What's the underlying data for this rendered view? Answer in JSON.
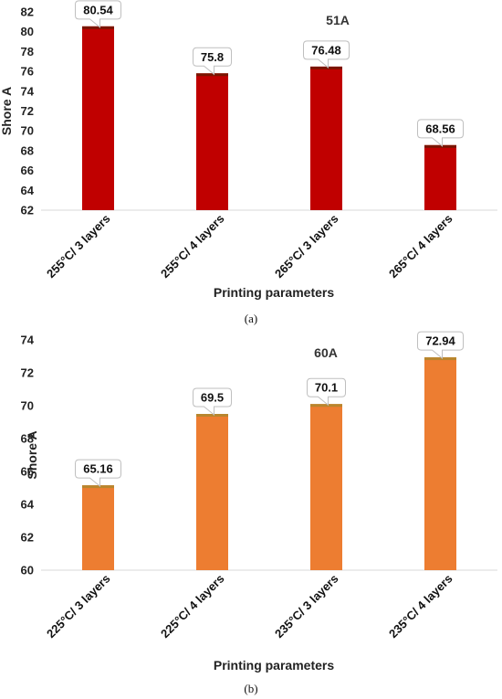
{
  "chart_data": [
    {
      "type": "bar",
      "title": "51A",
      "xlabel": "Printing parameters",
      "ylabel": "Shore A",
      "categories": [
        "255°C/ 3 layers",
        "255°C/ 4 layers",
        "265°C/ 3 layers",
        "265°C/ 4 layers"
      ],
      "values": [
        80.54,
        75.8,
        76.48,
        68.56
      ],
      "data_labels": [
        "80.54",
        "75.8",
        "76.48",
        "68.56"
      ],
      "yticks": [
        "62",
        "64",
        "66",
        "68",
        "70",
        "72",
        "74",
        "76",
        "78",
        "80",
        "82"
      ],
      "ylim": [
        62,
        82
      ],
      "grid": false,
      "color": "#C00000",
      "caption": "(a)"
    },
    {
      "type": "bar",
      "title": "60A",
      "xlabel": "Printing parameters",
      "ylabel": "Shore A",
      "categories": [
        "225°C/ 3 layers",
        "225°C/ 4 layers",
        "235°C/ 3 layers",
        "235°C/ 4 layers"
      ],
      "values": [
        65.16,
        69.5,
        70.1,
        72.94
      ],
      "data_labels": [
        "65.16",
        "69.5",
        "70.1",
        "72.94"
      ],
      "yticks": [
        "60",
        "62",
        "64",
        "66",
        "68",
        "70",
        "72",
        "74"
      ],
      "ylim": [
        60,
        74
      ],
      "grid": false,
      "color": "#ED7D31",
      "caption": "(b)"
    }
  ]
}
